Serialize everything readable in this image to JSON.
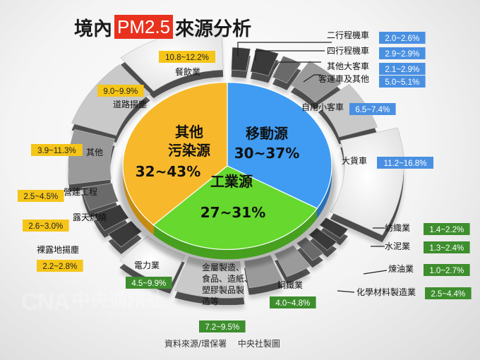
{
  "title": {
    "pre": "境內",
    "highlight": "PM2.5",
    "post": "來源分析"
  },
  "footer": {
    "source": "資料來源/環保署",
    "credit": "中央社製圖"
  },
  "watermark": {
    "logo": "CNA",
    "name_cn": "中央通訊社",
    "name_en": "THE CENTRAL NEWS AGENCY"
  },
  "colors": {
    "mobile": "#3f9cf2",
    "industry": "#66d82e",
    "other": "#f7b92b",
    "mobile_label": "#4a90e2",
    "industry_label": "#3e8e2e",
    "other_label": "#f5c518"
  },
  "chart_data": {
    "type": "pie",
    "title": "境內PM2.5來源分析",
    "slices": [
      {
        "key": "mobile",
        "name": "移動源",
        "range": "30~37%",
        "value": 33.5,
        "color": "#3f9cf2"
      },
      {
        "key": "industry",
        "name": "工業源",
        "range": "27~31%",
        "value": 29,
        "color": "#66d82e"
      },
      {
        "key": "other",
        "name": "其他污染源",
        "name_lines": [
          "其他",
          "污染源"
        ],
        "range": "32~43%",
        "value": 37.5,
        "color": "#f7b92b"
      }
    ],
    "subsources": [
      {
        "group": "mobile",
        "name": "二行程機車",
        "range": "2.0~2.6%",
        "value": 2.3
      },
      {
        "group": "mobile",
        "name": "四行程機車",
        "range": "2.9~2.9%",
        "value": 2.9
      },
      {
        "group": "mobile",
        "name": "其他大客車",
        "range": "2.1~2.9%",
        "value": 2.5
      },
      {
        "group": "mobile",
        "name": "客運車及其他",
        "range": "5.0~5.1%",
        "value": 5.05
      },
      {
        "group": "mobile",
        "name": "自用小客車",
        "range": "6.5~7.4%",
        "value": 6.95
      },
      {
        "group": "mobile",
        "name": "大貨車",
        "range": "11.2~16.8%",
        "value": 14.0
      },
      {
        "group": "industry",
        "name": "紡織業",
        "range": "1.4~2.2%",
        "value": 1.8
      },
      {
        "group": "industry",
        "name": "水泥業",
        "range": "1.3~2.4%",
        "value": 1.85
      },
      {
        "group": "industry",
        "name": "煉油業",
        "range": "1.0~2.7%",
        "value": 1.85
      },
      {
        "group": "industry",
        "name": "化學材料製造業",
        "range": "2.5~4.4%",
        "value": 3.45
      },
      {
        "group": "industry",
        "name": "鋼鐵業",
        "range": "4.0~4.8%",
        "value": 4.4
      },
      {
        "group": "industry",
        "name": "金屬製造、食品、造紙、塑膠製品製造等",
        "name_lines": [
          "金屬製造、",
          "食品、造紙、",
          "塑膠製品製",
          "造等"
        ],
        "range": "7.2~9.5%",
        "value": 8.35
      },
      {
        "group": "industry",
        "name": "電力業",
        "range": "4.5~9.9%",
        "value": 7.2
      },
      {
        "group": "other",
        "name": "裸露地揚塵",
        "range": "2.2~2.8%",
        "value": 2.5
      },
      {
        "group": "other",
        "name": "露天燃燒",
        "range": "2.6~3.0%",
        "value": 2.8
      },
      {
        "group": "other",
        "name": "營建工程",
        "range": "2.5~4.5%",
        "value": 3.5
      },
      {
        "group": "other",
        "name": "其他",
        "range": "3.9~11.3%",
        "value": 7.6
      },
      {
        "group": "other",
        "name": "道路揚塵",
        "range": "9.0~9.9%",
        "value": 9.45
      },
      {
        "group": "other",
        "name": "餐飲業",
        "range": "10.8~12.2%",
        "value": 11.5
      }
    ]
  }
}
